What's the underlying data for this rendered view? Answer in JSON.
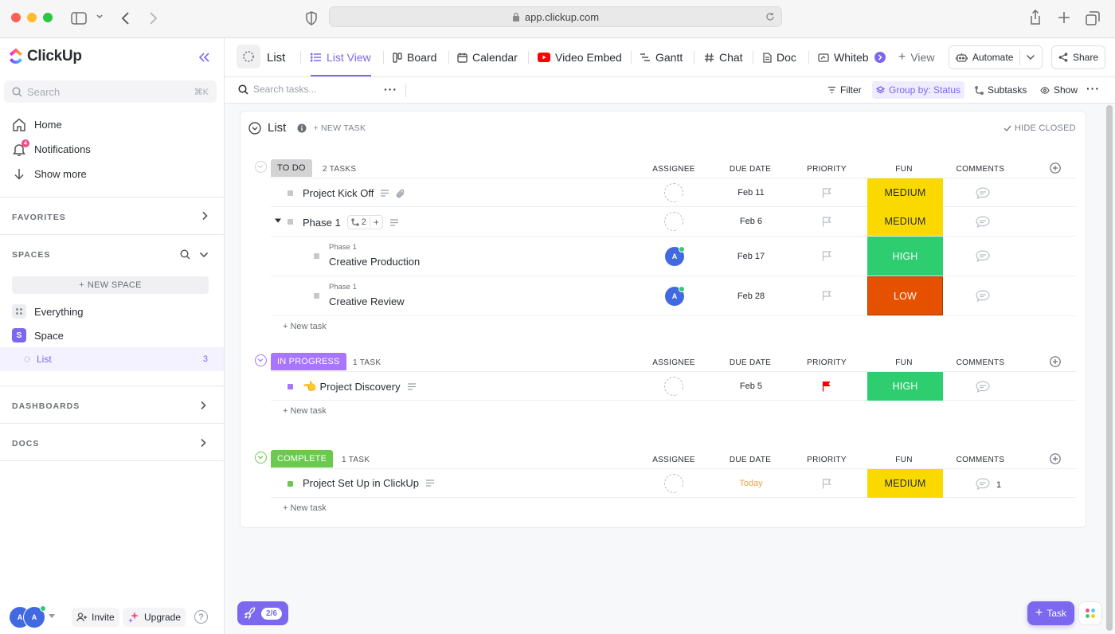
{
  "browser": {
    "url": "app.clickup.com"
  },
  "sidebar": {
    "brand": "ClickUp",
    "search_placeholder": "Search",
    "search_shortcut": "⌘K",
    "nav": [
      {
        "label": "Home",
        "icon": "home-icon"
      },
      {
        "label": "Notifications",
        "icon": "bell-icon",
        "badge": "4"
      },
      {
        "label": "Show more",
        "icon": "arrow-down-icon"
      }
    ],
    "favorites_label": "FAVORITES",
    "spaces_label": "SPACES",
    "new_space_label": "NEW SPACE",
    "everything_label": "Everything",
    "space_label": "Space",
    "space_avatar": "S",
    "list_label": "List",
    "list_count": "3",
    "dashboards_label": "DASHBOARDS",
    "docs_label": "DOCS",
    "footer": {
      "avatars": [
        "A",
        "A"
      ],
      "invite_label": "Invite",
      "upgrade_label": "Upgrade",
      "help_label": "?"
    }
  },
  "topbar": {
    "list_name": "List",
    "tabs": [
      {
        "label": "List View",
        "icon": "list-icon",
        "active": true
      },
      {
        "label": "Board",
        "icon": "board-icon"
      },
      {
        "label": "Calendar",
        "icon": "calendar-icon"
      },
      {
        "label": "Video Embed",
        "icon": "youtube-icon"
      },
      {
        "label": "Gantt",
        "icon": "gantt-icon"
      },
      {
        "label": "Chat",
        "icon": "hash-icon"
      },
      {
        "label": "Doc",
        "icon": "doc-icon"
      },
      {
        "label": "Whiteb",
        "icon": "whiteboard-icon"
      }
    ],
    "add_view_label": "View",
    "automate_label": "Automate",
    "share_label": "Share"
  },
  "toolbar": {
    "search_placeholder": "Search tasks...",
    "filter_label": "Filter",
    "group_by_label": "Group by: Status",
    "subtasks_label": "Subtasks",
    "show_label": "Show"
  },
  "list": {
    "title": "List",
    "new_task_label": "+ NEW TASK",
    "hide_closed_label": "HIDE CLOSED",
    "columns": {
      "assignee": "ASSIGNEE",
      "due_date": "DUE DATE",
      "priority": "PRIORITY",
      "fun": "FUN",
      "comments": "COMMENTS"
    },
    "new_task_row_label": "+ New task",
    "groups": [
      {
        "status": "TO DO",
        "count": "2 TASKS",
        "color": "#d3d3d3",
        "text_color": "#292d34",
        "tasks": [
          {
            "name": "Project Kick Off",
            "due": "Feb 11",
            "fun": "MEDIUM",
            "fun_color": "#f9d900"
          },
          {
            "name": "Phase 1",
            "subtask_count": "2",
            "due": "Feb 6",
            "fun": "MEDIUM",
            "fun_color": "#f9d900"
          },
          {
            "parent": "Phase 1",
            "name": "Creative Production",
            "assignee": "A",
            "due": "Feb 17",
            "fun": "HIGH",
            "fun_color": "#2ecd6f"
          },
          {
            "parent": "Phase 1",
            "name": "Creative Review",
            "assignee": "A",
            "due": "Feb 28",
            "fun": "LOW",
            "fun_color": "#e65100"
          }
        ]
      },
      {
        "status": "IN PROGRESS",
        "count": "1 TASK",
        "color": "#a875ff",
        "text_color": "#ffffff",
        "tasks": [
          {
            "emoji": "👈",
            "name": "Project Discovery",
            "due": "Feb 5",
            "priority": "urgent",
            "fun": "HIGH",
            "fun_color": "#2ecd6f"
          }
        ]
      },
      {
        "status": "COMPLETE",
        "count": "1 TASK",
        "color": "#6bc950",
        "text_color": "#ffffff",
        "tasks": [
          {
            "name": "Project Set Up in ClickUp",
            "due": "Today",
            "due_color": "#f0a04b",
            "fun": "MEDIUM",
            "fun_color": "#f9d900",
            "comments": "1"
          }
        ]
      }
    ]
  },
  "floating": {
    "progress": "2/6",
    "task_button_label": "Task"
  }
}
